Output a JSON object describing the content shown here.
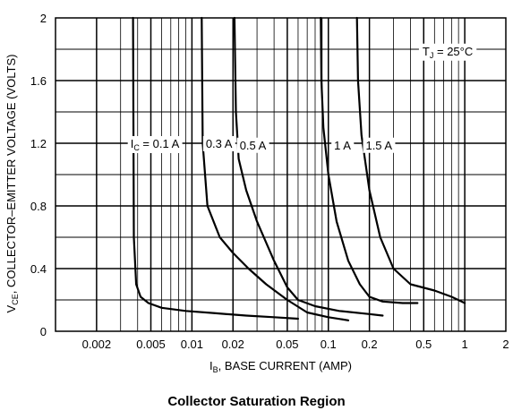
{
  "figure": {
    "caption": "Collector Saturation Region"
  },
  "chart_data": {
    "type": "line",
    "x_scale": "log",
    "xlim": [
      0.001,
      2
    ],
    "ylim": [
      0,
      2
    ],
    "grid": true,
    "xlabel_main": "I",
    "xlabel_sub": "B",
    "xlabel_rest": ", BASE CURRENT (AMP)",
    "ylabel_main": "V",
    "ylabel_sub": "CE",
    "ylabel_rest": ", COLLECTOR–EMITTER VOLTAGE (VOLTS)",
    "x_ticks": [
      {
        "value": 0.002,
        "label": "0.002"
      },
      {
        "value": 0.005,
        "label": "0.005"
      },
      {
        "value": 0.01,
        "label": "0.01"
      },
      {
        "value": 0.02,
        "label": "0.02"
      },
      {
        "value": 0.05,
        "label": "0.05"
      },
      {
        "value": 0.1,
        "label": "0.1"
      },
      {
        "value": 0.2,
        "label": "0.2"
      },
      {
        "value": 0.5,
        "label": "0.5"
      },
      {
        "value": 1,
        "label": "1"
      },
      {
        "value": 2,
        "label": "2"
      }
    ],
    "y_ticks": [
      {
        "value": 0,
        "label": "0"
      },
      {
        "value": 0.4,
        "label": "0.4"
      },
      {
        "value": 0.8,
        "label": "0.8"
      },
      {
        "value": 1.2,
        "label": "1.2"
      },
      {
        "value": 1.6,
        "label": "1.6"
      },
      {
        "value": 2,
        "label": "2"
      }
    ],
    "annotation": {
      "main": "T",
      "sub": "J",
      "rest": " = 25°C",
      "x": 0.75,
      "y": 1.79
    },
    "series": [
      {
        "name": "I_C = 0.1 A",
        "label_parts": {
          "pre": "I",
          "sub": "C",
          "post": " = 0.1 A"
        },
        "label_at": {
          "x": 0.00535,
          "y": 1.2
        },
        "x": [
          0.0037,
          0.00375,
          0.0039,
          0.0042,
          0.0048,
          0.006,
          0.009,
          0.015,
          0.025,
          0.04,
          0.06
        ],
        "y": [
          2.0,
          0.6,
          0.3,
          0.22,
          0.18,
          0.15,
          0.13,
          0.115,
          0.1,
          0.09,
          0.08
        ]
      },
      {
        "name": "0.3 A",
        "label_at": {
          "x": 0.0158,
          "y": 1.2
        },
        "x": [
          0.0118,
          0.012,
          0.013,
          0.016,
          0.02,
          0.026,
          0.035,
          0.05,
          0.07,
          0.1,
          0.14
        ],
        "y": [
          2.0,
          1.2,
          0.8,
          0.6,
          0.5,
          0.4,
          0.3,
          0.2,
          0.12,
          0.09,
          0.07
        ]
      },
      {
        "name": "0.5 A",
        "label_at": {
          "x": 0.028,
          "y": 1.19
        },
        "x": [
          0.0205,
          0.021,
          0.022,
          0.025,
          0.03,
          0.04,
          0.05,
          0.06,
          0.08,
          0.12,
          0.2,
          0.25
        ],
        "y": [
          2.0,
          1.4,
          1.1,
          0.9,
          0.7,
          0.45,
          0.28,
          0.2,
          0.16,
          0.13,
          0.11,
          0.1
        ]
      },
      {
        "name": "1 A",
        "label_at": {
          "x": 0.127,
          "y": 1.19
        },
        "x": [
          0.088,
          0.089,
          0.092,
          0.1,
          0.115,
          0.14,
          0.17,
          0.2,
          0.25,
          0.35,
          0.45
        ],
        "y": [
          2.0,
          1.6,
          1.3,
          1.0,
          0.7,
          0.45,
          0.3,
          0.22,
          0.19,
          0.18,
          0.18
        ]
      },
      {
        "name": "1.5 A",
        "label_at": {
          "x": 0.235,
          "y": 1.19
        },
        "x": [
          0.162,
          0.165,
          0.175,
          0.2,
          0.24,
          0.3,
          0.4,
          0.6,
          0.8,
          1.0
        ],
        "y": [
          2.0,
          1.6,
          1.25,
          0.9,
          0.6,
          0.4,
          0.3,
          0.26,
          0.22,
          0.18
        ]
      }
    ]
  }
}
